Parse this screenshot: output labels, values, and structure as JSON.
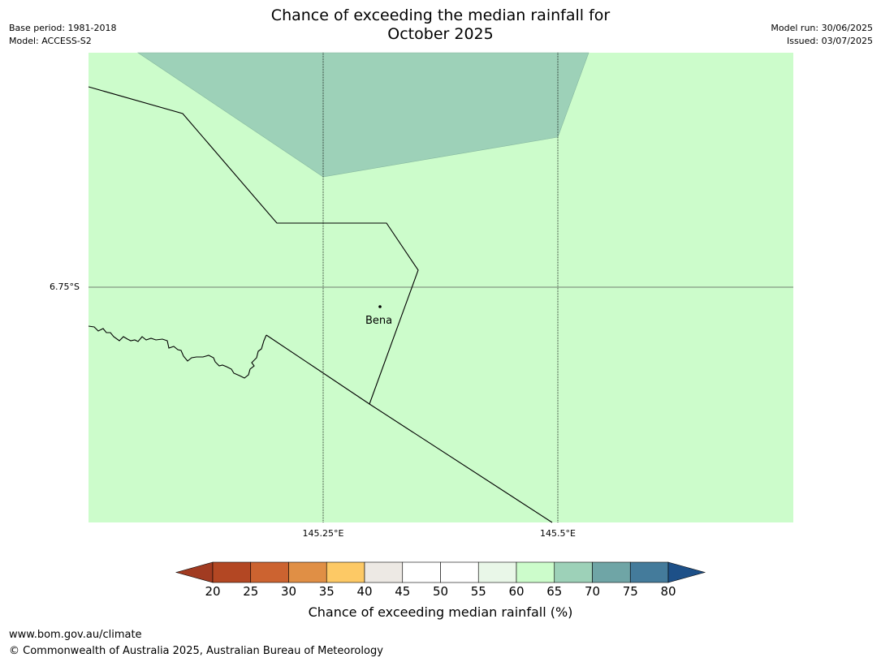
{
  "title_line1": "Chance of exceeding the median rainfall for",
  "title_line2": "October 2025",
  "base_period": "Base period: 1981-2018",
  "model": "Model: ACCESS-S2",
  "model_run": "Model run: 30/06/2025",
  "issued": "Issued: 03/07/2025",
  "map": {
    "lat_label": "6.75°S",
    "lon_labels": [
      "145.25°E",
      "145.5°E"
    ],
    "place_label": "Bena",
    "background_class": "60-65",
    "background_color": "#ccfccb",
    "region_class": "65-70",
    "region_color": "#9dd1b8"
  },
  "colorbar": {
    "ticks": [
      "20",
      "25",
      "30",
      "35",
      "40",
      "45",
      "50",
      "55",
      "60",
      "65",
      "70",
      "75",
      "80"
    ],
    "colors": [
      "#a13b21",
      "#b34723",
      "#cc6330",
      "#e08f45",
      "#fdc965",
      "#ede9e4",
      "#ffffff",
      "#ffffff",
      "#e9f7e8",
      "#ccfccb",
      "#9dd1b8",
      "#6fa5a6",
      "#447b9b",
      "#1d5088"
    ],
    "label": "Chance of exceeding median rainfall (%)"
  },
  "footer_url": "www.bom.gov.au/climate",
  "footer_copyright": "© Commonwealth of Australia 2025, Australian Bureau of Meteorology"
}
